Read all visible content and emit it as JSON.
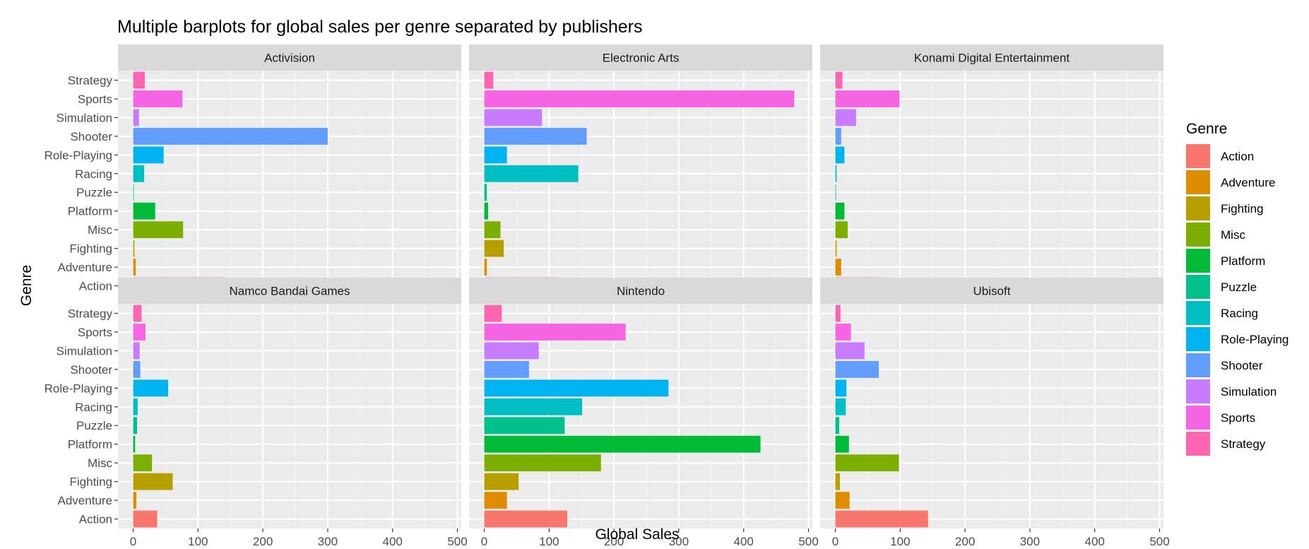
{
  "chart_data": {
    "type": "bar",
    "orientation": "horizontal",
    "title": "Multiple barplots for global sales per genre separated by publishers",
    "xlabel": "Global Sales",
    "ylabel": "Genre",
    "xlim": [
      0,
      500
    ],
    "x_ticks": [
      "0",
      "100",
      "200",
      "300",
      "400",
      "500"
    ],
    "grid": true,
    "legend_position": "right",
    "legend_title": "Genre",
    "categories": [
      "Action",
      "Adventure",
      "Fighting",
      "Misc",
      "Platform",
      "Puzzle",
      "Racing",
      "Role-Playing",
      "Shooter",
      "Simulation",
      "Sports",
      "Strategy"
    ],
    "colors": [
      "#F8766D",
      "#DE8C00",
      "#B79F00",
      "#7CAE00",
      "#00BA38",
      "#00C08B",
      "#00BFC4",
      "#00B4F0",
      "#619CFF",
      "#C77CFF",
      "#F564E3",
      "#FF64B0"
    ],
    "panels": [
      {
        "name": "Activision",
        "values": [
          142,
          4,
          2,
          77,
          34,
          1,
          17,
          47,
          300,
          9,
          76,
          18
        ]
      },
      {
        "name": "Electronic Arts",
        "values": [
          115,
          4,
          30,
          25,
          6,
          4,
          145,
          35,
          158,
          89,
          478,
          14
        ]
      },
      {
        "name": "Konami Digital Entertainment",
        "values": [
          71,
          9,
          2,
          19,
          14,
          1,
          2,
          14,
          9,
          32,
          99,
          11
        ]
      },
      {
        "name": "Namco Bandai Games",
        "values": [
          37,
          5,
          61,
          29,
          3,
          6,
          7,
          54,
          11,
          10,
          19,
          13
        ]
      },
      {
        "name": "Nintendo",
        "values": [
          128,
          35,
          53,
          180,
          426,
          124,
          151,
          284,
          69,
          84,
          218,
          27
        ]
      },
      {
        "name": "Ubisoft",
        "values": [
          143,
          22,
          7,
          98,
          21,
          6,
          16,
          17,
          67,
          45,
          24,
          8
        ]
      }
    ]
  }
}
